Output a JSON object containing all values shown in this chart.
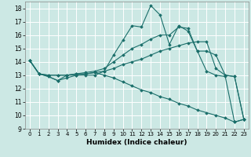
{
  "xlabel": "Humidex (Indice chaleur)",
  "bg_color": "#cce8e4",
  "grid_color": "#ffffff",
  "line_color": "#1a6e6a",
  "xlim": [
    -0.5,
    23.5
  ],
  "ylim": [
    9,
    18.5
  ],
  "yticks": [
    9,
    10,
    11,
    12,
    13,
    14,
    15,
    16,
    17,
    18
  ],
  "xticks": [
    0,
    1,
    2,
    3,
    4,
    5,
    6,
    7,
    8,
    9,
    10,
    11,
    12,
    13,
    14,
    15,
    16,
    17,
    18,
    19,
    20,
    21,
    22,
    23
  ],
  "series": [
    {
      "x": [
        0,
        1,
        2,
        3,
        4,
        5,
        6,
        7,
        8,
        9,
        10,
        11,
        12,
        13,
        14,
        15,
        16,
        17,
        18,
        19,
        20,
        21,
        22,
        23
      ],
      "y": [
        14.1,
        13.1,
        12.9,
        12.6,
        12.8,
        13.0,
        13.1,
        13.2,
        13.0,
        12.8,
        12.5,
        12.2,
        11.9,
        11.7,
        11.4,
        11.2,
        10.9,
        10.7,
        10.4,
        10.2,
        10.0,
        9.8,
        9.5,
        9.7
      ]
    },
    {
      "x": [
        0,
        1,
        2,
        3,
        4,
        5,
        6,
        7,
        8,
        9,
        10,
        11,
        12,
        13,
        14,
        15,
        16,
        17,
        18,
        19,
        20,
        21,
        22,
        23
      ],
      "y": [
        14.1,
        13.1,
        13.0,
        13.0,
        13.0,
        13.1,
        13.1,
        13.2,
        13.3,
        13.5,
        13.8,
        14.0,
        14.2,
        14.5,
        14.8,
        15.0,
        15.2,
        15.4,
        15.5,
        15.5,
        13.5,
        13.0,
        12.9,
        9.7
      ]
    },
    {
      "x": [
        0,
        1,
        2,
        3,
        4,
        5,
        6,
        7,
        8,
        9,
        10,
        11,
        12,
        13,
        14,
        15,
        16,
        17,
        18,
        19,
        20,
        21,
        22,
        23
      ],
      "y": [
        14.1,
        13.1,
        13.0,
        13.0,
        13.0,
        13.1,
        13.2,
        13.3,
        13.5,
        14.0,
        14.5,
        15.0,
        15.3,
        15.7,
        16.0,
        16.0,
        16.6,
        16.5,
        14.8,
        14.8,
        14.5,
        13.0,
        12.9,
        9.7
      ]
    },
    {
      "x": [
        0,
        1,
        2,
        3,
        4,
        5,
        6,
        7,
        8,
        9,
        10,
        11,
        12,
        13,
        14,
        15,
        16,
        17,
        18,
        19,
        20,
        21,
        22,
        23
      ],
      "y": [
        14.1,
        13.1,
        12.9,
        12.6,
        13.0,
        13.0,
        13.0,
        13.0,
        13.3,
        14.5,
        15.6,
        16.7,
        16.6,
        18.2,
        17.5,
        15.3,
        16.7,
        16.3,
        14.8,
        13.3,
        13.0,
        12.9,
        9.5,
        9.7
      ]
    }
  ]
}
